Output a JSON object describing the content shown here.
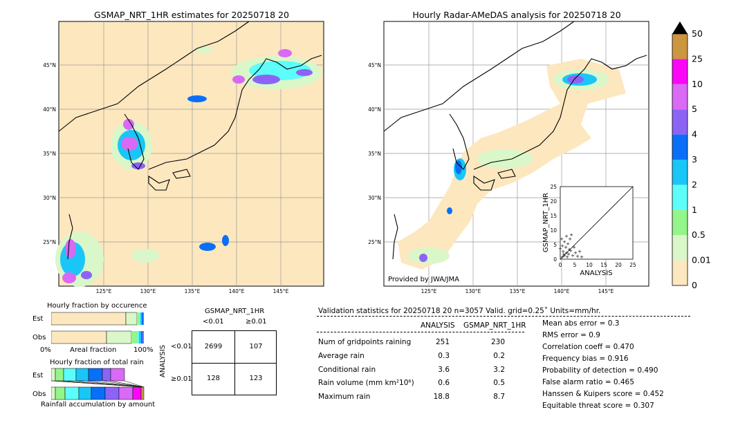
{
  "left_map": {
    "title": "GSMAP_NRT_1HR estimates for 20250718 20",
    "lat_labels": [
      "45°N",
      "40°N",
      "35°N",
      "30°N",
      "25°N"
    ],
    "lon_labels": [
      "125°E",
      "130°E",
      "135°E",
      "140°E",
      "145°E"
    ]
  },
  "right_map": {
    "title": "Hourly Radar-AMeDAS analysis for 20250718 20",
    "lat_labels": [
      "45°N",
      "40°N",
      "35°N",
      "30°N",
      "25°N"
    ],
    "lon_labels": [
      "125°E",
      "130°E",
      "135°E",
      "140°E",
      "145°E"
    ],
    "credit": "Provided by JWA/JMA"
  },
  "scatter_inset": {
    "ylabel": "GSMAP_NRT_1HR",
    "xlabel": "ANALYSIS",
    "ticks": [
      "0",
      "5",
      "10",
      "15",
      "20",
      "25"
    ]
  },
  "colorbar": {
    "labels": [
      "0",
      "0.01",
      "0.5",
      "1",
      "2",
      "3",
      "4",
      "5",
      "10",
      "25",
      "50"
    ],
    "colors": [
      "#fde7bf",
      "#d9f7c9",
      "#94f58a",
      "#5dfdf9",
      "#19c6f7",
      "#0a6ff7",
      "#8c64f5",
      "#d86af5",
      "#fb07f7",
      "#cc9540"
    ]
  },
  "occurrence": {
    "title": "Hourly fraction by occurence",
    "row_labels": [
      "Est",
      "Obs"
    ],
    "axis_left": "0%",
    "axis_mid": "Areal fraction",
    "axis_right": "100%"
  },
  "total_rain": {
    "title": "Hourly fraction of total rain",
    "row_labels": [
      "Est",
      "Obs"
    ],
    "axis_label": "Rainfall accumulation by amount"
  },
  "contingency": {
    "title": "GSMAP_NRT_1HR",
    "col_labels": [
      "<0.01",
      "≥0.01"
    ],
    "row_axis_label": "ANALYSIS",
    "row_labels": [
      "<0.01",
      "≥0.01"
    ],
    "cells": [
      [
        "2699",
        "107"
      ],
      [
        "128",
        "123"
      ]
    ]
  },
  "validation": {
    "header": "Validation statistics for 20250718 20  n=3057 Valid. grid=0.25˚ Units=mm/hr.",
    "col_headers": [
      "ANALYSIS",
      "GSMAP_NRT_1HR"
    ],
    "rows": [
      {
        "label": "Num of gridpoints raining",
        "a": "251",
        "g": "230"
      },
      {
        "label": "Average rain",
        "a": "0.3",
        "g": "0.2"
      },
      {
        "label": "Conditional rain",
        "a": "3.6",
        "g": "3.2"
      },
      {
        "label": "Rain volume (mm km²10⁶)",
        "a": "0.6",
        "g": "0.5"
      },
      {
        "label": "Maximum rain",
        "a": "18.8",
        "g": "8.7"
      }
    ],
    "scores": [
      "Mean abs error =    0.3",
      "RMS error =    0.9",
      "Correlation coeff =  0.470",
      "Frequency bias =  0.916",
      "Probability of detection =  0.490",
      "False alarm ratio =  0.465",
      "Hanssen & Kuipers score =  0.452",
      "Equitable threat score =  0.307"
    ]
  }
}
